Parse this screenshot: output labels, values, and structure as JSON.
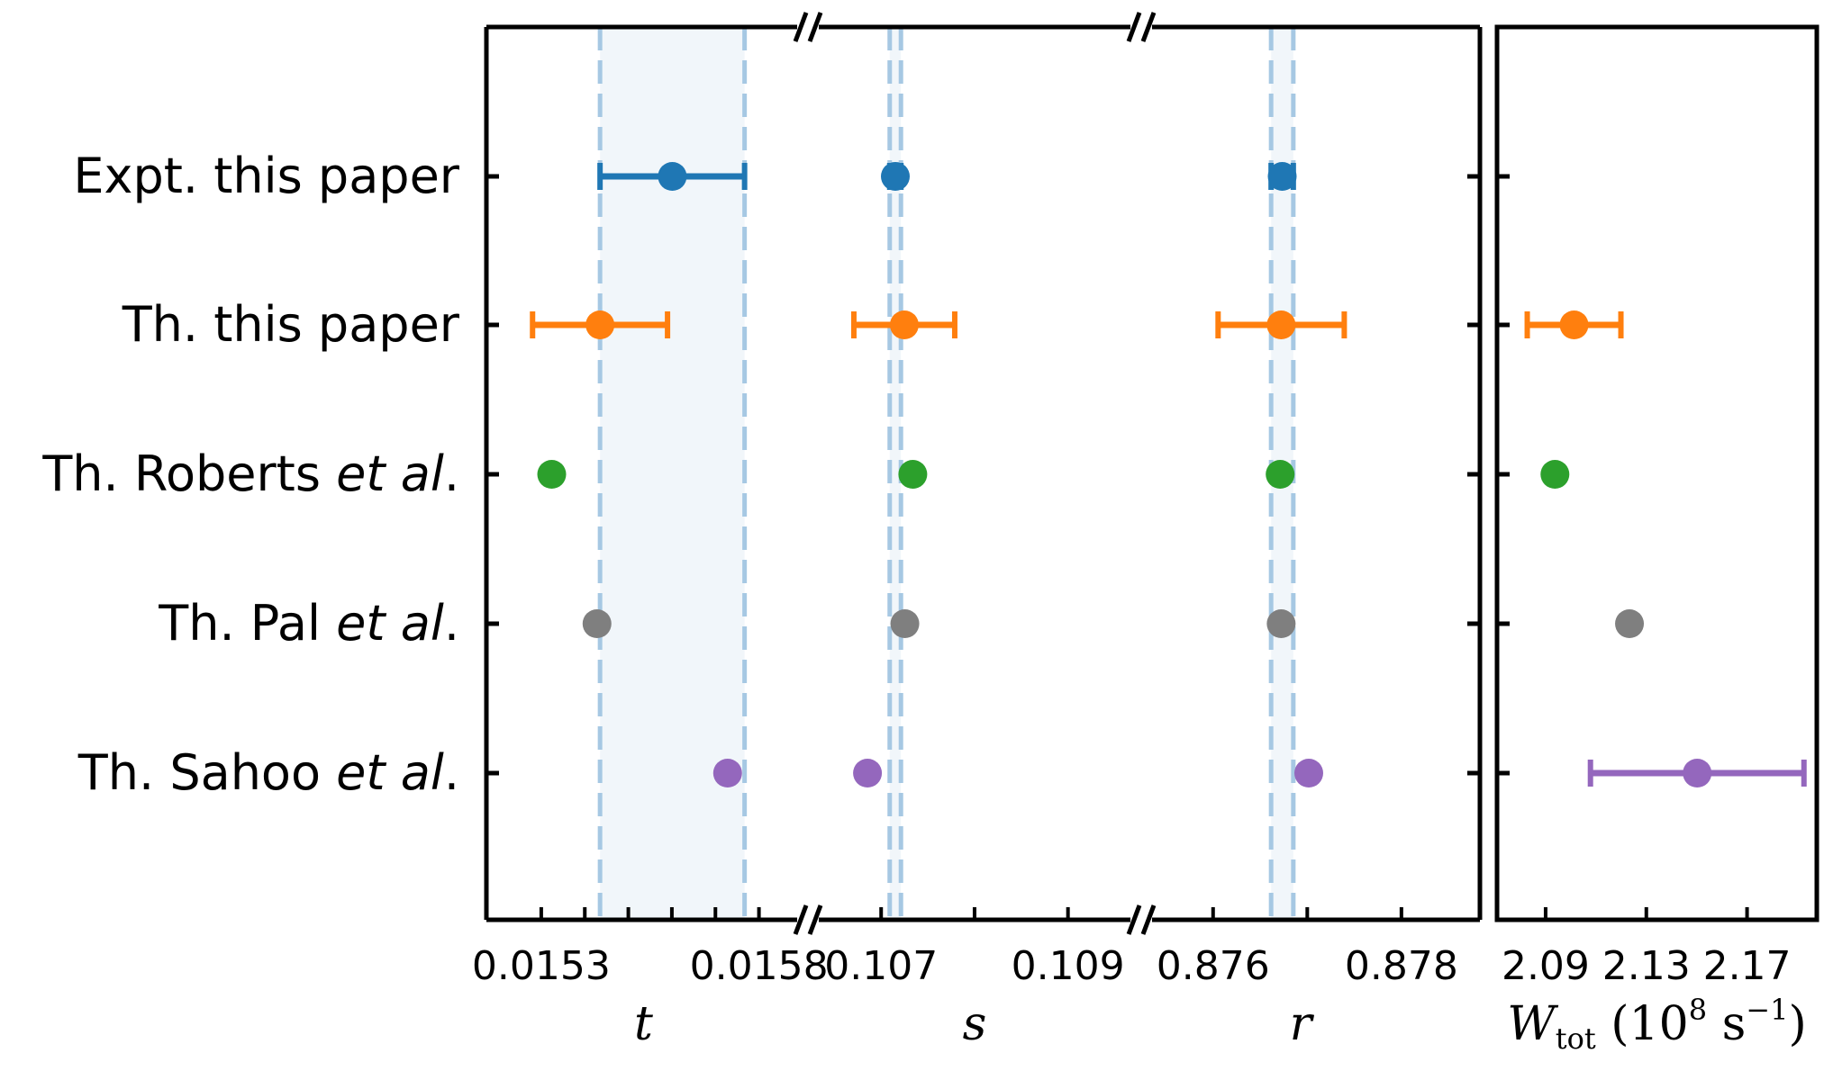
{
  "chart_data": {
    "type": "scatter",
    "categories": [
      {
        "prefix": "Expt. this paper",
        "italic": "",
        "suffix": ""
      },
      {
        "prefix": "Th. this paper",
        "italic": "",
        "suffix": ""
      },
      {
        "prefix": "Th. Roberts ",
        "italic": "et al",
        "suffix": "."
      },
      {
        "prefix": "Th. Pal ",
        "italic": "et al",
        "suffix": "."
      },
      {
        "prefix": "Th. Sahoo ",
        "italic": "et al",
        "suffix": "."
      }
    ],
    "colors": [
      "#1f77b4",
      "#ff7f0e",
      "#2ca02c",
      "#7f7f7f",
      "#9467bd"
    ],
    "band_color": "#a6c8e3",
    "panels": [
      {
        "key": "t",
        "xlabel": "t",
        "xlim": [
          0.015174,
          0.015896
        ],
        "ticks": [
          0.0153,
          0.0158
        ],
        "tick_labels": [
          "0.0153",
          "0.0158"
        ],
        "minor_ticks": [
          0.0153,
          0.0154,
          0.0155,
          0.0156,
          0.0157,
          0.0158
        ],
        "band": [
          0.015435,
          0.015767
        ],
        "points": [
          {
            "value": 0.015601,
            "err_low": 0.000166,
            "err_high": 0.000166
          },
          {
            "value": 0.015435,
            "err_low": 0.000155,
            "err_high": 0.000155
          },
          {
            "value": 0.015324
          },
          {
            "value": 0.015428
          },
          {
            "value": 0.015728
          }
        ]
      },
      {
        "key": "s",
        "xlabel": "s",
        "xlim": [
          0.106294,
          0.109707
        ],
        "ticks": [
          0.107,
          0.109
        ],
        "tick_labels": [
          "0.107",
          "0.109"
        ],
        "minor_ticks": [
          0.107,
          0.108,
          0.109
        ],
        "band": [
          0.107092,
          0.107212
        ],
        "points": [
          {
            "value": 0.107152,
            "err_low": 6e-05,
            "err_high": 6e-05
          },
          {
            "value": 0.107248,
            "err_low": 0.00054,
            "err_high": 0.00054
          },
          {
            "value": 0.107339
          },
          {
            "value": 0.107254
          },
          {
            "value": 0.106854
          }
        ]
      },
      {
        "key": "r",
        "xlabel": "r",
        "xlim": [
          0.875323,
          0.878537
        ],
        "ticks": [
          0.876,
          0.878
        ],
        "tick_labels": [
          "0.876",
          "0.878"
        ],
        "minor_ticks": [
          0.876,
          0.877,
          0.878
        ],
        "band": [
          0.876616,
          0.876852
        ],
        "points": [
          {
            "value": 0.876734,
            "err_low": 0.000118,
            "err_high": 0.000118
          },
          {
            "value": 0.876723,
            "err_low": 0.00067,
            "err_high": 0.00067
          },
          {
            "value": 0.876712
          },
          {
            "value": 0.876723
          },
          {
            "value": 0.877016
          }
        ]
      },
      {
        "key": "w",
        "xlabel": "W",
        "xlabel_sub": "tot",
        "xlabel_unit": "(10",
        "xlabel_exp": "8",
        "xlabel_unit2": "s",
        "xlabel_exp2": "−1",
        "xlabel_close": ")",
        "xlim": [
          2.0707,
          2.1977
        ],
        "ticks": [
          2.09,
          2.13,
          2.17
        ],
        "tick_labels": [
          "2.09",
          "2.13",
          "2.17"
        ],
        "minor_ticks": [
          2.09,
          2.13,
          2.17
        ],
        "points": [
          null,
          {
            "value": 2.1013,
            "err_low": 0.0186,
            "err_high": 0.0186
          },
          {
            "value": 2.0937
          },
          {
            "value": 2.1233
          },
          {
            "value": 2.1502,
            "err_low": 0.0424,
            "err_high": 0.0424
          }
        ]
      }
    ],
    "grid": false,
    "legend": "none"
  }
}
